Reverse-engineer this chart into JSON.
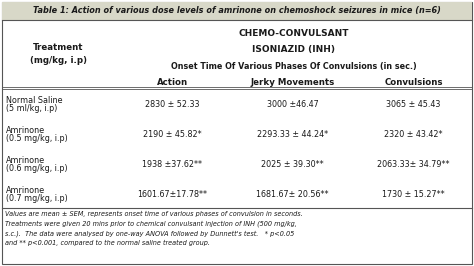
{
  "title": "Table 1: Action of various dose levels of amrinone on chemoshock seizures in mice (n=6)",
  "header1": "CHEMO-CONVULSANT",
  "header2": "ISONIAZID (INH)",
  "header3": "Onset Time Of Various Phases Of Convulsions (in sec.)",
  "col_treatment_line1": "Treatment",
  "col_treatment_line2": "(mg/kg, i.p)",
  "col_action": "Action",
  "col_jerky": "Jerky Movements",
  "col_convulsions": "Convulsions",
  "rows": [
    {
      "treatment_line1": "Normal Saline",
      "treatment_line2": "(5 ml/kg, i.p)",
      "action": "2830 ± 52.33",
      "jerky": "3000 ±46.47",
      "convulsions": "3065 ± 45.43"
    },
    {
      "treatment_line1": "Amrinone",
      "treatment_line2": "(0.5 mg/kg, i.p)",
      "action": "2190 ± 45.82*",
      "jerky": "2293.33 ± 44.24*",
      "convulsions": "2320 ± 43.42*"
    },
    {
      "treatment_line1": "Amrinone",
      "treatment_line2": "(0.6 mg/kg, i.p)",
      "action": "1938 ±37.62**",
      "jerky": "2025 ± 39.30**",
      "convulsions": "2063.33± 34.79**"
    },
    {
      "treatment_line1": "Amrinone",
      "treatment_line2": "(0.7 mg/kg, i.p)",
      "action": "1601.67±17.78**",
      "jerky": "1681.67± 20.56**",
      "convulsions": "1730 ± 15.27**"
    }
  ],
  "footnote_lines": [
    "Values are mean ± SEM, represents onset time of various phases of convulsion in seconds.",
    "Treatments were given 20 mins prior to chemical convulsant injection of INH (500 mg/kg,",
    "s.c.).  The data were analysed by one-way ANOVA followed by Dunnett's test.   * p<0.05",
    "and ** p<0.001, compared to the normal saline treated group."
  ],
  "bg_color": "#ffffff",
  "text_color": "#1a1a1a",
  "border_color": "#555555",
  "title_bg": "#d8d8c8"
}
